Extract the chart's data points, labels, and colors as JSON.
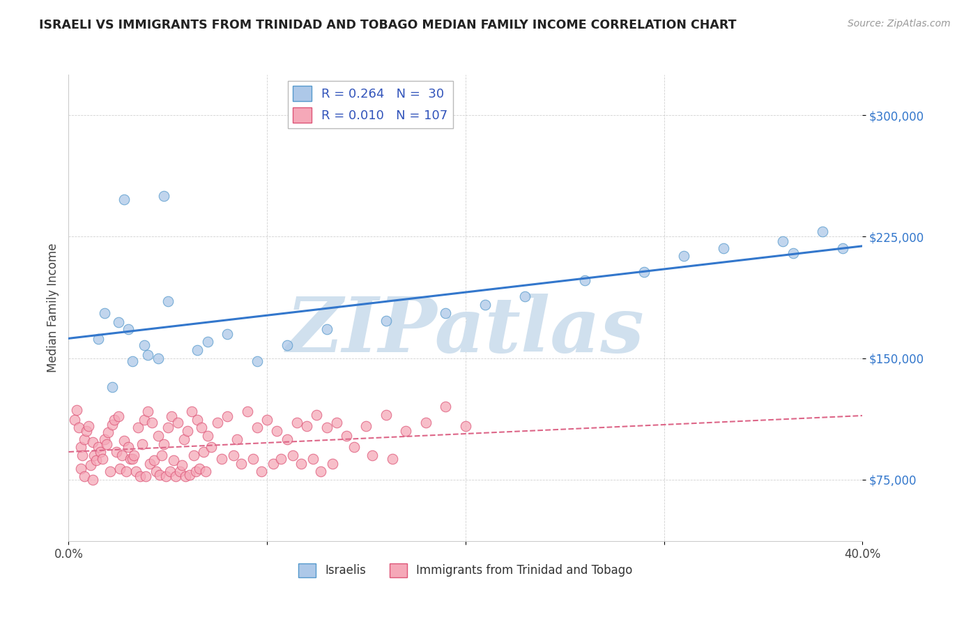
{
  "title": "ISRAELI VS IMMIGRANTS FROM TRINIDAD AND TOBAGO MEDIAN FAMILY INCOME CORRELATION CHART",
  "source": "Source: ZipAtlas.com",
  "ylabel": "Median Family Income",
  "xlim": [
    0.0,
    40.0
  ],
  "ylim": [
    37000,
    325000
  ],
  "yticks": [
    75000,
    150000,
    225000,
    300000
  ],
  "ytick_labels": [
    "$75,000",
    "$150,000",
    "$225,000",
    "$300,000"
  ],
  "xtick_labels": [
    "0.0%",
    "",
    "",
    "",
    "40.0%"
  ],
  "israeli_R": 0.264,
  "israeli_N": 30,
  "trinidad_R": 0.01,
  "trinidad_N": 107,
  "israeli_color": "#adc8e8",
  "trinidad_color": "#f5a8b8",
  "israeli_edge_color": "#5599cc",
  "trinidad_edge_color": "#dd5577",
  "trend_blue": "#3377cc",
  "trend_pink": "#dd6688",
  "watermark_color": "#d0e0ee",
  "legend_label_1": "Israelis",
  "legend_label_2": "Immigrants from Trinidad and Tobago",
  "israeli_x": [
    3.2,
    4.0,
    1.5,
    2.2,
    3.8,
    1.8,
    2.5,
    3.0,
    5.0,
    6.5,
    4.5,
    7.0,
    8.0,
    9.5,
    11.0,
    13.0,
    16.0,
    19.0,
    21.0,
    23.0,
    26.0,
    29.0,
    31.0,
    33.0,
    36.0,
    38.0,
    39.0,
    2.8,
    4.8,
    36.5
  ],
  "israeli_y": [
    148000,
    152000,
    162000,
    132000,
    158000,
    178000,
    172000,
    168000,
    185000,
    155000,
    150000,
    160000,
    165000,
    148000,
    158000,
    168000,
    173000,
    178000,
    183000,
    188000,
    198000,
    203000,
    213000,
    218000,
    222000,
    228000,
    218000,
    248000,
    250000,
    215000
  ],
  "trinidad_x": [
    0.3,
    0.5,
    0.6,
    0.7,
    0.8,
    0.9,
    1.0,
    1.1,
    1.2,
    1.3,
    1.4,
    1.5,
    1.6,
    1.7,
    1.8,
    1.9,
    2.0,
    2.1,
    2.2,
    2.3,
    2.4,
    2.5,
    2.6,
    2.7,
    2.8,
    2.9,
    3.0,
    3.1,
    3.2,
    3.3,
    3.4,
    3.5,
    3.6,
    3.7,
    3.8,
    3.9,
    4.0,
    4.1,
    4.2,
    4.3,
    4.4,
    4.5,
    4.6,
    4.7,
    4.8,
    4.9,
    5.0,
    5.1,
    5.2,
    5.3,
    5.4,
    5.5,
    5.6,
    5.7,
    5.8,
    5.9,
    6.0,
    6.1,
    6.2,
    6.3,
    6.4,
    6.5,
    6.6,
    6.7,
    6.8,
    6.9,
    7.0,
    7.2,
    7.5,
    7.7,
    8.0,
    8.3,
    8.5,
    8.7,
    9.0,
    9.3,
    9.5,
    9.7,
    10.0,
    10.3,
    10.5,
    10.7,
    11.0,
    11.3,
    11.5,
    11.7,
    12.0,
    12.3,
    12.5,
    12.7,
    13.0,
    13.3,
    13.5,
    14.0,
    14.4,
    15.0,
    15.3,
    16.0,
    16.3,
    17.0,
    18.0,
    19.0,
    20.0,
    0.4,
    0.6,
    0.8,
    1.2
  ],
  "trinidad_y": [
    112000,
    107000,
    95000,
    90000,
    100000,
    105000,
    108000,
    84000,
    98000,
    90000,
    87000,
    95000,
    92000,
    88000,
    100000,
    97000,
    104000,
    80000,
    109000,
    112000,
    92000,
    114000,
    82000,
    90000,
    99000,
    80000,
    95000,
    88000,
    88000,
    90000,
    80000,
    107000,
    77000,
    97000,
    112000,
    77000,
    117000,
    85000,
    110000,
    87000,
    80000,
    102000,
    78000,
    90000,
    97000,
    77000,
    107000,
    80000,
    114000,
    87000,
    77000,
    110000,
    80000,
    84000,
    100000,
    77000,
    105000,
    78000,
    117000,
    90000,
    80000,
    112000,
    82000,
    107000,
    92000,
    80000,
    102000,
    95000,
    110000,
    88000,
    114000,
    90000,
    100000,
    85000,
    117000,
    88000,
    107000,
    80000,
    112000,
    85000,
    105000,
    88000,
    100000,
    90000,
    110000,
    85000,
    108000,
    88000,
    115000,
    80000,
    107000,
    85000,
    110000,
    102000,
    95000,
    108000,
    90000,
    115000,
    88000,
    105000,
    110000,
    120000,
    108000,
    118000,
    82000,
    77000,
    75000
  ]
}
